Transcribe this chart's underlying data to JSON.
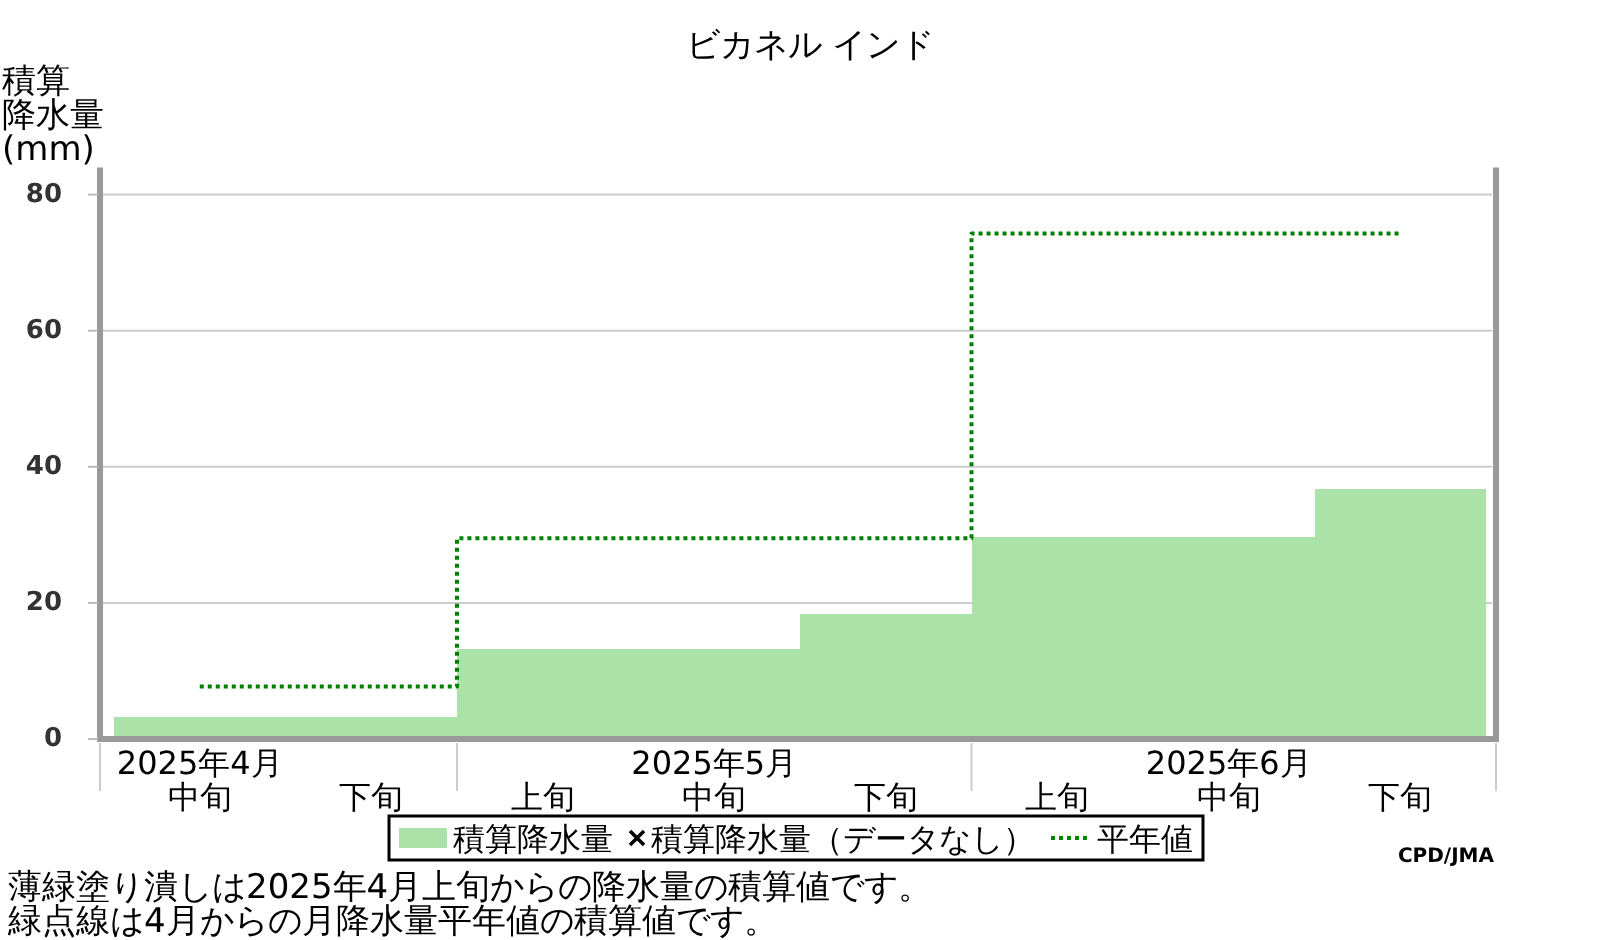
{
  "chart_data": {
    "type": "bar",
    "title": "ビカネル インド",
    "ylabel": "積算降水量(mm)",
    "categories": [
      "2025年4月中旬",
      "下旬",
      "上旬",
      "2025年5月中旬",
      "下旬",
      "上旬",
      "2025年6月中旬",
      "下旬"
    ],
    "series": [
      {
        "name": "積算降水量",
        "color": "#aae2a8",
        "values": [
          3.2,
          3.2,
          13.2,
          13.2,
          18.3,
          29.7,
          29.7,
          36.8
        ]
      },
      {
        "name": "積算降水量（データなし）",
        "type": "scatter",
        "marker": "cross",
        "color": "#000000",
        "values": [
          null,
          null,
          null,
          null,
          null,
          null,
          null,
          null
        ]
      },
      {
        "name": "平年値",
        "type": "step",
        "line_style": "dotted",
        "color": "#008000",
        "values": [
          7.7,
          7.7,
          29.5,
          29.5,
          29.5,
          74.3,
          74.3,
          74.3
        ]
      }
    ],
    "ylim": [
      0,
      84
    ],
    "yticks": [
      0,
      20,
      40,
      60,
      80
    ],
    "grid": "y",
    "legend": "bottom",
    "annotations": [
      "CPD/JMA",
      "薄緑塗り潰しは2025年4月上旬からの降水量の積算値です。",
      "緑点線は4月からの月降水量平年値の積算値です。"
    ]
  }
}
